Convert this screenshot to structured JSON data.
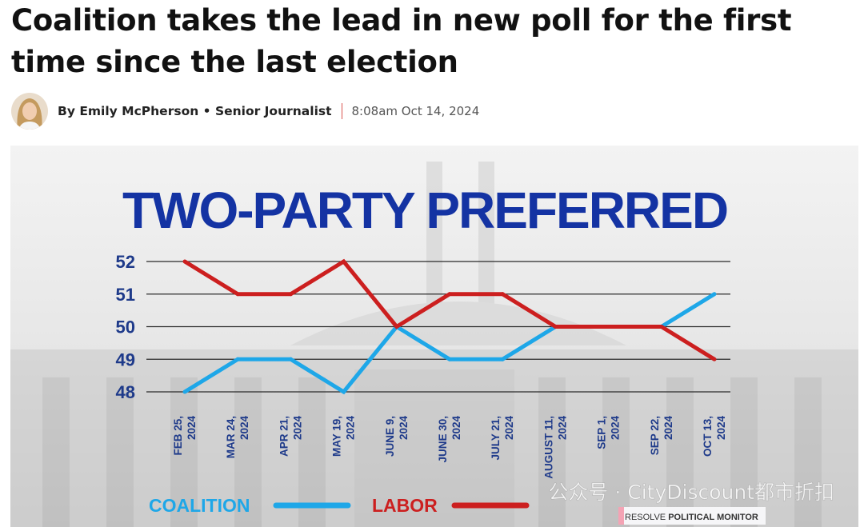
{
  "article": {
    "headline": "Coalition takes the lead in new poll for the first time since the last election",
    "author": "By Emily McPherson • Senior Journalist",
    "timestamp": "8:08am Oct 14, 2024"
  },
  "watermark": "公众号 · CityDiscount都市折扣",
  "colors": {
    "coalition": "#1ea7e8",
    "labor": "#cc1f1f",
    "title": "#1433a3",
    "axis_text": "#1e3a8a"
  },
  "chart_data": {
    "type": "line",
    "title": "TWO-PARTY PREFERRED",
    "categories": [
      [
        "FEB 25,",
        "2024"
      ],
      [
        "MAR 24,",
        "2024"
      ],
      [
        "APR 21,",
        "2024"
      ],
      [
        "MAY 19,",
        "2024"
      ],
      [
        "JUNE 9,",
        "2024"
      ],
      [
        "JUNE 30,",
        "2024"
      ],
      [
        "JULY 21,",
        "2024"
      ],
      [
        "AUGUST 11,",
        "2024"
      ],
      [
        "SEP 1,",
        "2024"
      ],
      [
        "SEP 22,",
        "2024"
      ],
      [
        "OCT 13,",
        "2024"
      ]
    ],
    "yticks": [
      "52",
      "51",
      "50",
      "49",
      "48"
    ],
    "ylim": [
      48,
      52
    ],
    "grid": true,
    "series": [
      {
        "name": "COALITION",
        "color": "#1ea7e8",
        "values": [
          48,
          49,
          49,
          48,
          50,
          49,
          49,
          50,
          50,
          50,
          51
        ]
      },
      {
        "name": "LABOR",
        "color": "#cc1f1f",
        "values": [
          52,
          51,
          51,
          52,
          50,
          51,
          51,
          50,
          50,
          50,
          49
        ]
      }
    ],
    "legend_position": "bottom-left",
    "source_badge": {
      "light": "RESOLVE",
      "bold": "POLITICAL MONITOR"
    }
  }
}
